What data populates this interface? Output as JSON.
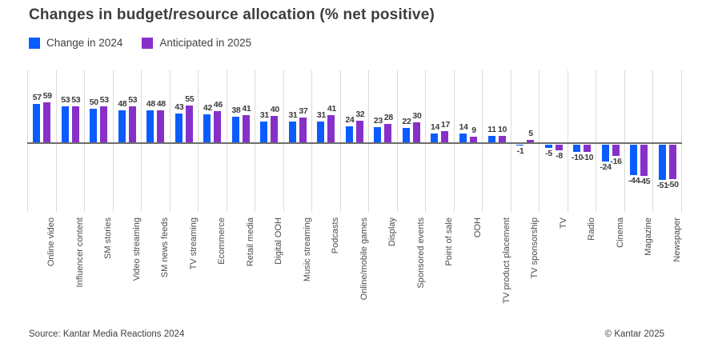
{
  "title": "Changes in budget/resource allocation (% net positive)",
  "legend": [
    {
      "label": "Change in 2024",
      "color": "#0b5cff"
    },
    {
      "label": "Anticipated in 2025",
      "color": "#8730c9"
    }
  ],
  "footer": {
    "source": "Source: Kantar Media Reactions 2024",
    "copyright": "© Kantar 2025"
  },
  "colors": {
    "blue": "#0b5cff",
    "purple": "#8730c9",
    "grid": "#dcdbd4",
    "zero_axis": "#6d6d6d",
    "title_text": "#3d3d3d",
    "label_text": "#4c4c4c"
  },
  "chart_data": {
    "type": "bar",
    "title": "Changes in budget/resource allocation (% net positive)",
    "categories": [
      "Online video",
      "Influencer content",
      "SM stories",
      "Video streaming",
      "SM news feeds",
      "TV streaming",
      "Ecommerce",
      "Retail media",
      "Digital OOH",
      "Music streaming",
      "Podcasts",
      "Online/mobile games",
      "Display",
      "Sponsored events",
      "Point of sale",
      "OOH",
      "TV product placement",
      "TV sponsorship",
      "TV",
      "Radio",
      "Cinema",
      "Magazine",
      "Newspaper"
    ],
    "series": [
      {
        "name": "Change in 2024",
        "color": "#0b5cff",
        "values": [
          57,
          53,
          50,
          48,
          48,
          43,
          42,
          38,
          31,
          31,
          31,
          24,
          23,
          22,
          14,
          14,
          11,
          -1,
          -5,
          -10,
          -24,
          -44,
          -51
        ]
      },
      {
        "name": "Anticipated in 2025",
        "color": "#8730c9",
        "values": [
          59,
          53,
          53,
          53,
          48,
          55,
          46,
          41,
          40,
          37,
          41,
          32,
          28,
          30,
          17,
          9,
          10,
          5,
          -8,
          -10,
          -16,
          -45,
          -50
        ]
      }
    ],
    "xlabel": "",
    "ylabel": "",
    "ylim": [
      -60,
      105
    ],
    "grid": "vertical-only",
    "legend_position": "top-left",
    "data_labels": true
  }
}
